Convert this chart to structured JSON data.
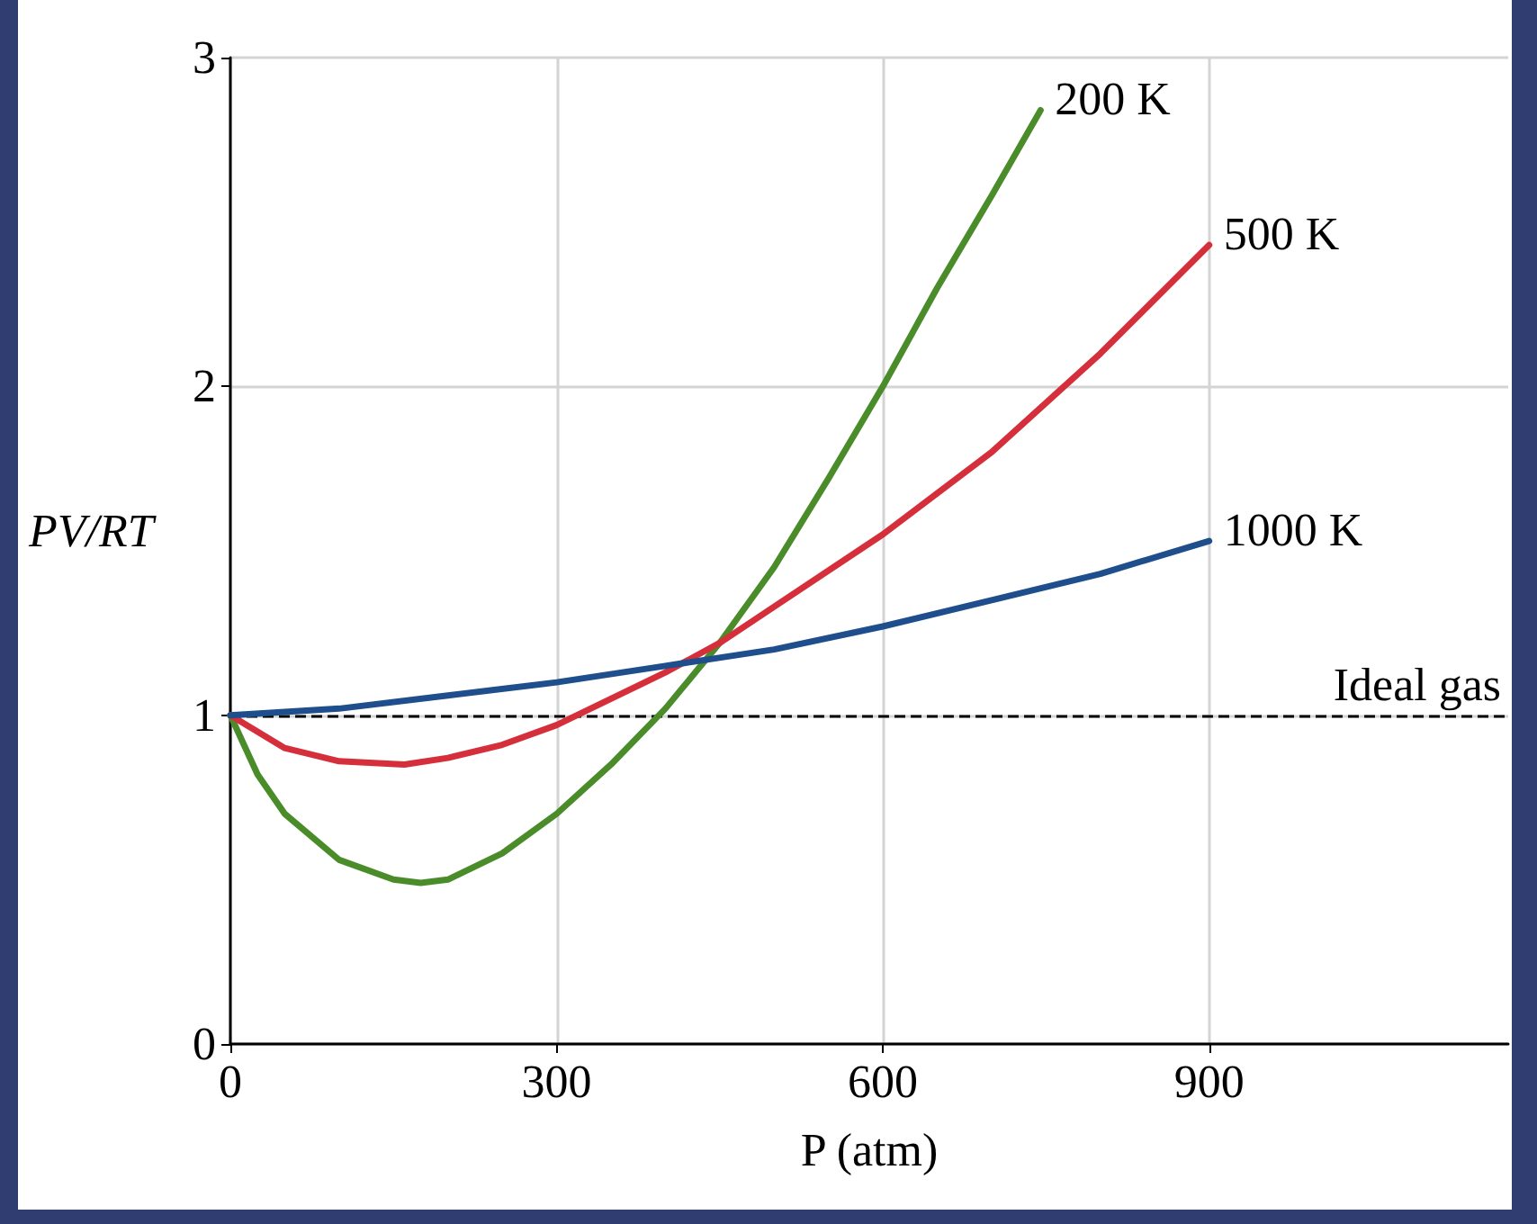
{
  "chart_data": {
    "type": "line",
    "xlabel": "P (atm)",
    "ylabel": "PV/RT",
    "xlim": [
      0,
      1175
    ],
    "xticks": [
      0,
      300,
      600,
      900
    ],
    "ylim": [
      0,
      3
    ],
    "yticks": [
      0,
      1,
      2,
      3
    ],
    "grid": true,
    "legend": false,
    "marker": "none",
    "line_style": "solid",
    "series": [
      {
        "name": "200 K",
        "color": "#4a8c2a",
        "x": [
          0,
          25,
          50,
          100,
          150,
          175,
          200,
          250,
          300,
          350,
          400,
          450,
          500,
          550,
          600,
          650,
          700,
          745
        ],
        "values": [
          1,
          0.82,
          0.7,
          0.56,
          0.5,
          0.49,
          0.5,
          0.58,
          0.7,
          0.85,
          1.02,
          1.22,
          1.45,
          1.72,
          2.0,
          2.3,
          2.58,
          2.84
        ]
      },
      {
        "name": "500 K",
        "color": "#d62f3c",
        "x": [
          0,
          50,
          100,
          160,
          200,
          250,
          300,
          350,
          400,
          450,
          500,
          600,
          700,
          800,
          900
        ],
        "values": [
          1,
          0.9,
          0.86,
          0.85,
          0.87,
          0.91,
          0.97,
          1.05,
          1.13,
          1.22,
          1.33,
          1.55,
          1.8,
          2.1,
          2.43
        ]
      },
      {
        "name": "1000 K",
        "color": "#1f4e8c",
        "x": [
          0,
          100,
          200,
          300,
          400,
          500,
          600,
          700,
          800,
          900
        ],
        "values": [
          1,
          1.02,
          1.06,
          1.1,
          1.15,
          1.2,
          1.27,
          1.35,
          1.43,
          1.53
        ]
      }
    ],
    "ref_lines": [
      {
        "axis": "y",
        "value": 1,
        "label": "Ideal gas",
        "color": "#000000",
        "line_style": "dashed"
      }
    ]
  }
}
